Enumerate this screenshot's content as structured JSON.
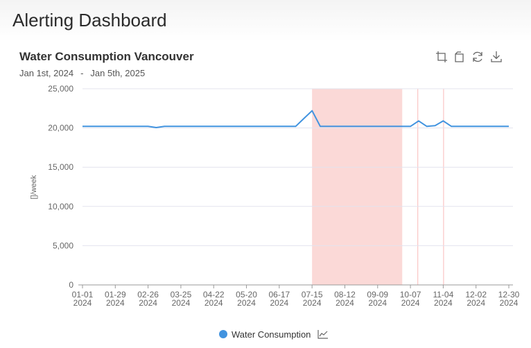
{
  "page": {
    "title": "Alerting Dashboard"
  },
  "chart_card": {
    "title": "Water Consumption Vancouver",
    "date_from": "Jan 1st, 2024",
    "date_sep": "-",
    "date_to": "Jan 5th, 2025",
    "toolbar": [
      "zoom-icon",
      "zoom-reset-icon",
      "refresh-icon",
      "download-icon"
    ]
  },
  "chart_data": {
    "type": "line",
    "ylabel": "[]/week",
    "ylim": [
      0,
      25000
    ],
    "yticks": [
      0,
      5000,
      10000,
      15000,
      20000,
      25000
    ],
    "ytick_labels": [
      "0",
      "5,000",
      "10,000",
      "15,000",
      "20,000",
      "25,000"
    ],
    "xlim": [
      "2024-01-01",
      "2024-12-30"
    ],
    "xticks": [
      "2024-01-01",
      "2024-01-29",
      "2024-02-26",
      "2024-03-25",
      "2024-04-22",
      "2024-05-20",
      "2024-06-17",
      "2024-07-15",
      "2024-08-12",
      "2024-09-09",
      "2024-10-07",
      "2024-11-04",
      "2024-12-02",
      "2024-12-30"
    ],
    "xtick_labels": [
      [
        "01-01",
        "2024"
      ],
      [
        "01-29",
        "2024"
      ],
      [
        "02-26",
        "2024"
      ],
      [
        "03-25",
        "2024"
      ],
      [
        "04-22",
        "2024"
      ],
      [
        "05-20",
        "2024"
      ],
      [
        "06-17",
        "2024"
      ],
      [
        "07-15",
        "2024"
      ],
      [
        "08-12",
        "2024"
      ],
      [
        "09-09",
        "2024"
      ],
      [
        "10-07",
        "2024"
      ],
      [
        "11-04",
        "2024"
      ],
      [
        "12-02",
        "2024"
      ],
      [
        "12-30",
        "2024"
      ]
    ],
    "grid": true,
    "legend_position": "bottom-center",
    "series": [
      {
        "name": "Water Consumption",
        "color": "#4193df",
        "x": [
          "2024-01-01",
          "2024-01-08",
          "2024-01-15",
          "2024-01-22",
          "2024-01-29",
          "2024-02-05",
          "2024-02-12",
          "2024-02-19",
          "2024-02-26",
          "2024-03-04",
          "2024-03-11",
          "2024-03-18",
          "2024-03-25",
          "2024-04-01",
          "2024-04-08",
          "2024-04-15",
          "2024-04-22",
          "2024-04-29",
          "2024-05-06",
          "2024-05-13",
          "2024-05-20",
          "2024-05-27",
          "2024-06-03",
          "2024-06-10",
          "2024-06-17",
          "2024-06-24",
          "2024-07-01",
          "2024-07-08",
          "2024-07-15",
          "2024-07-22",
          "2024-07-29",
          "2024-08-05",
          "2024-08-12",
          "2024-08-19",
          "2024-08-26",
          "2024-09-02",
          "2024-09-09",
          "2024-09-16",
          "2024-09-23",
          "2024-09-30",
          "2024-10-07",
          "2024-10-14",
          "2024-10-21",
          "2024-10-28",
          "2024-11-04",
          "2024-11-11",
          "2024-11-18",
          "2024-11-25",
          "2024-12-02",
          "2024-12-09",
          "2024-12-16",
          "2024-12-23",
          "2024-12-30"
        ],
        "values": [
          20200,
          20200,
          20200,
          20200,
          20200,
          20200,
          20200,
          20200,
          20200,
          20050,
          20200,
          20200,
          20200,
          20200,
          20200,
          20200,
          20200,
          20200,
          20200,
          20200,
          20200,
          20200,
          20200,
          20200,
          20200,
          20200,
          20200,
          21200,
          22200,
          20200,
          20200,
          20200,
          20200,
          20200,
          20200,
          20200,
          20200,
          20200,
          20200,
          20200,
          20200,
          20900,
          20200,
          20300,
          20900,
          20200,
          20200,
          20200,
          20200,
          20200,
          20200,
          20200,
          20200
        ]
      }
    ],
    "alert_bands": [
      {
        "from": "2024-07-15",
        "to": "2024-09-30",
        "color": "#f8b3b0"
      },
      {
        "from": "2024-10-13",
        "to": "2024-10-13",
        "color": "#f8b3b0"
      },
      {
        "from": "2024-11-04",
        "to": "2024-11-04",
        "color": "#f8b3b0"
      }
    ]
  },
  "legend": {
    "items": [
      {
        "label": "Water Consumption",
        "color": "#4193df",
        "icon": "line-chart-icon"
      }
    ]
  }
}
